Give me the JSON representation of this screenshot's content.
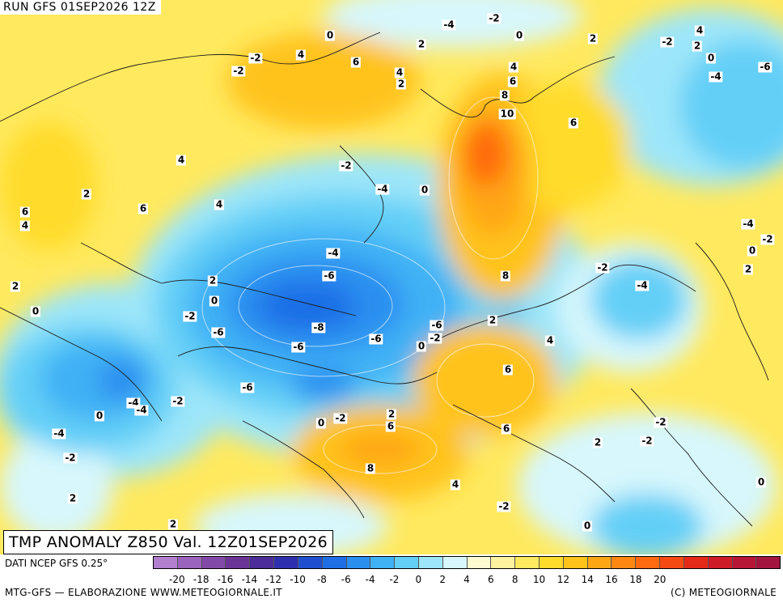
{
  "header": {
    "run_label": "RUN GFS 01SEP2026 12Z"
  },
  "map": {
    "title": "TMP ANOMALY Z850 Val. 12Z01SEP2026",
    "contour_labels": [
      "0",
      "-2",
      "-4",
      "-2",
      "0",
      "2",
      "-2",
      "4",
      "6",
      "4",
      "2",
      "2",
      "0",
      "2",
      "-2",
      "4",
      "-6",
      "-4",
      "-6",
      "4",
      "6",
      "8",
      "10",
      "6",
      "4",
      "6",
      "6",
      "4",
      "2",
      "-2",
      "-4",
      "0",
      "4",
      "2",
      "-4",
      "-6",
      "-4",
      "-2",
      "0",
      "2",
      "2",
      "0",
      "-2",
      "-4",
      "-6",
      "-8",
      "-6",
      "-6",
      "-6",
      "-2",
      "0",
      "2",
      "4",
      "8",
      "6",
      "-2",
      "-4",
      "-2",
      "2",
      "0",
      "-2",
      "-6",
      "-4",
      "-2",
      "-4",
      "0",
      "-2",
      "0",
      "2",
      "6",
      "6",
      "8",
      "4",
      "2",
      "-2",
      "2",
      "0",
      "-2",
      "0"
    ]
  },
  "legend": {
    "source": "DATI NCEP GFS 0.25°",
    "ticks": [
      "-20",
      "-18",
      "-16",
      "-14",
      "-12",
      "-10",
      "-8",
      "-6",
      "-4",
      "-2",
      "0",
      "2",
      "4",
      "6",
      "8",
      "10",
      "12",
      "14",
      "16",
      "18",
      "20"
    ],
    "colors": [
      "#b27fcf",
      "#9a63bd",
      "#8349a9",
      "#6b3597",
      "#4b2c99",
      "#2e2fb0",
      "#1f4fd0",
      "#1f6ee6",
      "#2b8ff0",
      "#3fb1f5",
      "#63cff7",
      "#9de6f9",
      "#d7f7fc",
      "#fdfbd0",
      "#fff3a0",
      "#ffe95e",
      "#ffdb2a",
      "#ffc31a",
      "#ffa615",
      "#ff8812",
      "#ff6a10",
      "#f54a12",
      "#e42a17",
      "#cf1a28",
      "#b81537",
      "#a3153f"
    ],
    "credit_left": "MTG-GFS — ELABORAZIONE WWW.METEOGIORNALE.IT",
    "credit_right": "(C) METEOGIORNALE"
  }
}
